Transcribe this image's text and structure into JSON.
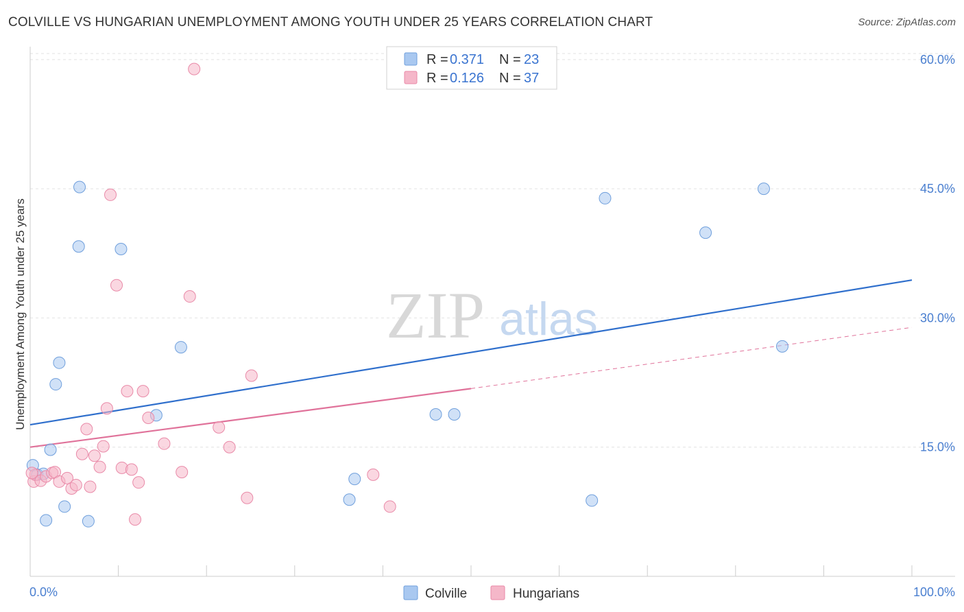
{
  "title": "COLVILLE VS HUNGARIAN UNEMPLOYMENT AMONG YOUTH UNDER 25 YEARS CORRELATION CHART",
  "source": "Source: ZipAtlas.com",
  "watermark": {
    "zip": "ZIP",
    "atlas": "atlas"
  },
  "chart_data": {
    "type": "scatter",
    "title": "COLVILLE VS HUNGARIAN UNEMPLOYMENT AMONG YOUTH UNDER 25 YEARS CORRELATION CHART",
    "xlabel": "",
    "ylabel": "Unemployment Among Youth under 25 years",
    "xlim": [
      0,
      100
    ],
    "ylim": [
      0,
      61.5
    ],
    "x_tick_labels": {
      "min": "0.0%",
      "max": "100.0%"
    },
    "y_ticks": [
      {
        "value": 15,
        "label": "15.0%"
      },
      {
        "value": 30,
        "label": "30.0%"
      },
      {
        "value": 45,
        "label": "45.0%"
      },
      {
        "value": 60,
        "label": "60.0%"
      }
    ],
    "legend": {
      "rows": [
        {
          "r_label": "R =",
          "r_value": "0.371",
          "n_label": "N =",
          "n_value": "23"
        },
        {
          "r_label": "R =",
          "r_value": "0.126",
          "n_label": "N =",
          "n_value": "37"
        }
      ]
    },
    "series": [
      {
        "name": "Colville",
        "color": "#a9c8f0",
        "stroke": "#6f9fdc",
        "line_color": "#2f6fcc",
        "trend": {
          "x0": 0,
          "y0": 17.6,
          "x1": 100,
          "y1": 34.4
        },
        "points": [
          {
            "x": 0.3,
            "y": 12.9
          },
          {
            "x": 0.8,
            "y": 11.8
          },
          {
            "x": 1.5,
            "y": 11.9
          },
          {
            "x": 1.8,
            "y": 6.5
          },
          {
            "x": 2.3,
            "y": 14.7
          },
          {
            "x": 2.9,
            "y": 22.3
          },
          {
            "x": 3.3,
            "y": 24.8
          },
          {
            "x": 3.9,
            "y": 8.1
          },
          {
            "x": 5.6,
            "y": 45.2
          },
          {
            "x": 5.5,
            "y": 38.3
          },
          {
            "x": 6.6,
            "y": 6.4
          },
          {
            "x": 10.3,
            "y": 38.0
          },
          {
            "x": 14.3,
            "y": 18.7
          },
          {
            "x": 17.1,
            "y": 26.6
          },
          {
            "x": 36.2,
            "y": 8.9
          },
          {
            "x": 36.8,
            "y": 11.3
          },
          {
            "x": 46.0,
            "y": 18.8
          },
          {
            "x": 48.1,
            "y": 18.8
          },
          {
            "x": 63.7,
            "y": 8.8
          },
          {
            "x": 65.2,
            "y": 43.9
          },
          {
            "x": 76.6,
            "y": 39.9
          },
          {
            "x": 83.2,
            "y": 45.0
          },
          {
            "x": 85.3,
            "y": 26.7
          }
        ]
      },
      {
        "name": "Hungarians",
        "color": "#f5b7c9",
        "stroke": "#e98aa8",
        "line_color": "#e0729a",
        "trend": {
          "x0": 0,
          "y0": 15.0,
          "x1": 50,
          "y1": 21.8
        },
        "trend_ext": {
          "x0": 50,
          "y0": 21.8,
          "x1": 100,
          "y1": 28.9
        },
        "points": [
          {
            "x": 0.4,
            "y": 11.0
          },
          {
            "x": 0.6,
            "y": 11.8
          },
          {
            "x": 1.2,
            "y": 11.1
          },
          {
            "x": 1.8,
            "y": 11.6
          },
          {
            "x": 2.5,
            "y": 12.0
          },
          {
            "x": 2.8,
            "y": 12.1
          },
          {
            "x": 3.3,
            "y": 11.0
          },
          {
            "x": 4.2,
            "y": 11.4
          },
          {
            "x": 4.7,
            "y": 10.2
          },
          {
            "x": 5.2,
            "y": 10.6
          },
          {
            "x": 5.9,
            "y": 14.2
          },
          {
            "x": 6.4,
            "y": 17.1
          },
          {
            "x": 6.8,
            "y": 10.4
          },
          {
            "x": 7.3,
            "y": 14.0
          },
          {
            "x": 7.9,
            "y": 12.7
          },
          {
            "x": 8.3,
            "y": 15.1
          },
          {
            "x": 8.7,
            "y": 19.5
          },
          {
            "x": 9.1,
            "y": 44.3
          },
          {
            "x": 9.8,
            "y": 33.8
          },
          {
            "x": 10.4,
            "y": 12.6
          },
          {
            "x": 11.0,
            "y": 21.5
          },
          {
            "x": 11.5,
            "y": 12.4
          },
          {
            "x": 11.9,
            "y": 6.6
          },
          {
            "x": 12.3,
            "y": 10.9
          },
          {
            "x": 12.8,
            "y": 21.5
          },
          {
            "x": 13.4,
            "y": 18.4
          },
          {
            "x": 15.2,
            "y": 15.4
          },
          {
            "x": 17.2,
            "y": 12.1
          },
          {
            "x": 18.1,
            "y": 32.5
          },
          {
            "x": 18.6,
            "y": 58.9
          },
          {
            "x": 21.4,
            "y": 17.3
          },
          {
            "x": 22.6,
            "y": 15.0
          },
          {
            "x": 24.6,
            "y": 9.1
          },
          {
            "x": 25.1,
            "y": 23.3
          },
          {
            "x": 38.9,
            "y": 11.8
          },
          {
            "x": 40.8,
            "y": 8.1
          },
          {
            "x": 0.2,
            "y": 12.0
          }
        ]
      }
    ]
  }
}
